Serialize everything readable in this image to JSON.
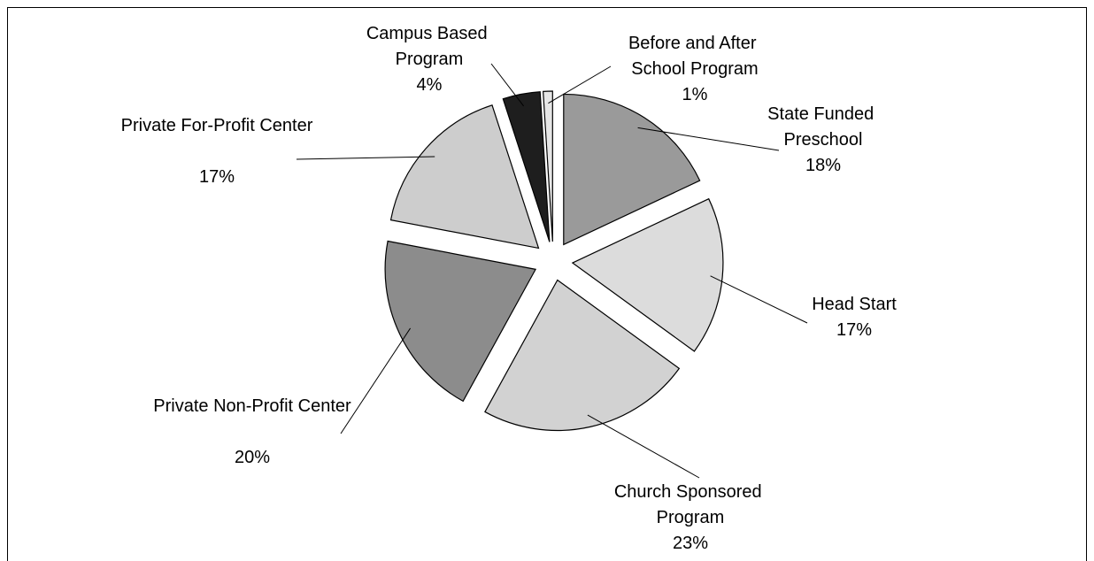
{
  "chart_data": {
    "type": "pie",
    "categories": [
      "State Funded Preschool",
      "Head Start",
      "Church Sponsored Program",
      "Private Non-Profit Center",
      "Private For-Profit Center",
      "Campus Based Program",
      "Before and After School Program"
    ],
    "values": [
      18,
      17,
      23,
      20,
      17,
      4,
      1
    ],
    "value_labels": [
      "18%",
      "17%",
      "23%",
      "20%",
      "17%",
      "4%",
      "1%"
    ],
    "colors": [
      "#9a9a9a",
      "#dcdcdc",
      "#d2d2d2",
      "#8c8c8c",
      "#cdcdcd",
      "#1e1e1e",
      "#e6e6e6"
    ]
  }
}
